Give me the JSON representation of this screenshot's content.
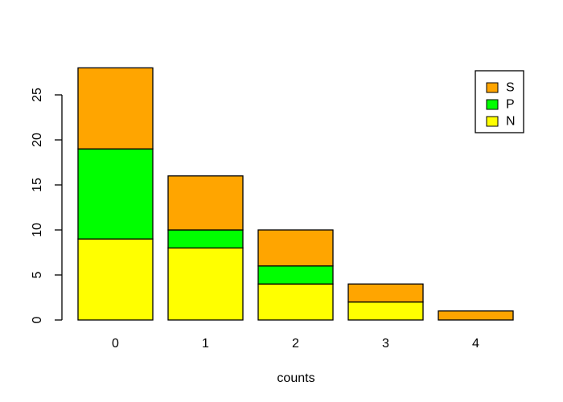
{
  "chart_data": {
    "type": "bar",
    "stacked": true,
    "title": "",
    "xlabel": "counts",
    "ylabel": "",
    "categories": [
      "0",
      "1",
      "2",
      "3",
      "4"
    ],
    "series": [
      {
        "name": "N",
        "color": "#FFFF00",
        "values": [
          9,
          8,
          4,
          2,
          0
        ]
      },
      {
        "name": "P",
        "color": "#00FF00",
        "values": [
          10,
          2,
          2,
          0,
          0
        ]
      },
      {
        "name": "S",
        "color": "#FFA500",
        "values": [
          9,
          6,
          4,
          2,
          1
        ]
      }
    ],
    "stack_totals": [
      28,
      16,
      10,
      4,
      1
    ],
    "ylim": [
      0,
      28
    ],
    "yticks": [
      0,
      5,
      10,
      15,
      20,
      25
    ],
    "grid": false,
    "legend": {
      "position": "top-right",
      "entries": [
        {
          "label": "S",
          "color": "#FFA500"
        },
        {
          "label": "P",
          "color": "#00FF00"
        },
        {
          "label": "N",
          "color": "#FFFF00"
        }
      ]
    },
    "bar_border_color": "#000000",
    "axis_color": "#000000",
    "background": "#FFFFFF"
  }
}
